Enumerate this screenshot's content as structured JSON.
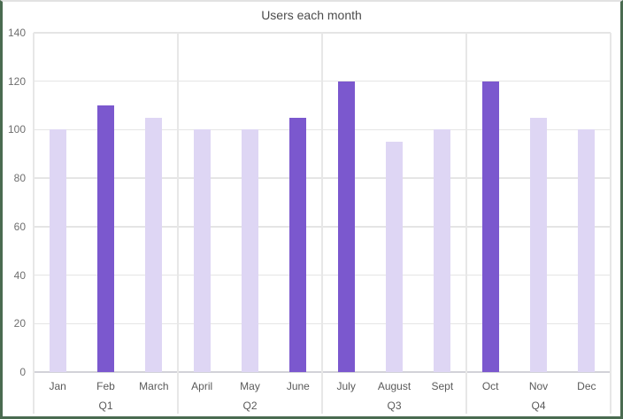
{
  "chart_data": {
    "type": "bar",
    "title": "Users each month",
    "categories": [
      "Jan",
      "Feb",
      "March",
      "April",
      "May",
      "June",
      "July",
      "August",
      "Sept",
      "Oct",
      "Nov",
      "Dec"
    ],
    "values": [
      100,
      110,
      105,
      100,
      100,
      105,
      120,
      95,
      100,
      120,
      105,
      100
    ],
    "emphasized": [
      false,
      true,
      false,
      false,
      false,
      true,
      true,
      false,
      false,
      true,
      false,
      false
    ],
    "group_labels": [
      "Q1",
      "Q2",
      "Q3",
      "Q4"
    ],
    "months_per_group": 3,
    "yticks": [
      0,
      20,
      40,
      60,
      80,
      100,
      120,
      140
    ],
    "ylim": [
      0,
      140
    ],
    "xlabel": "",
    "ylabel": "",
    "legend": "none",
    "grid": "horizontal-gridlines-and-quarter-separators",
    "colors": {
      "bar_normal": "#DED6F4",
      "bar_emphasis": "#7B58CE",
      "gridline": "#E5E5E5",
      "axis_line": "#D2D2D8",
      "tick_text": "#6F6F6F",
      "label_text": "#5A5A5A",
      "title_text": "#4C4C4C",
      "frame_border_green": "#4A6B50",
      "frame_border_top": "#E2E2E2"
    }
  }
}
